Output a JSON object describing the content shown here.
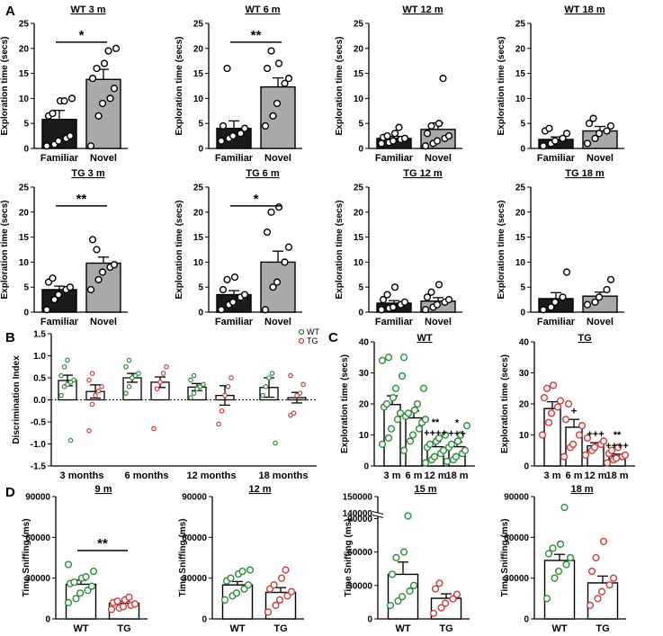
{
  "panel_letters": [
    "A",
    "B",
    "C",
    "D"
  ],
  "colors": {
    "familiar": "#1a1a1a",
    "novel": "#a9a9a9",
    "wt": "#2e8b3d",
    "tg": "#d03a3a"
  },
  "chart_data": [
    {
      "id": "a1",
      "panel": "A",
      "type": "bar",
      "title": "WT 3 m",
      "ylabel": "Exploration time (secs)",
      "ylim": [
        0,
        25
      ],
      "yticks": [
        0,
        5,
        10,
        15,
        20,
        25
      ],
      "categories": [
        "Familiar",
        "Novel"
      ],
      "values": [
        5.8,
        13.8
      ],
      "sem": [
        1.8,
        2.0
      ],
      "points": [
        [
          0.5,
          0.8,
          1.5,
          2,
          2.5,
          6.5,
          7,
          9.5,
          9.5,
          10
        ],
        [
          0.5,
          6.5,
          9,
          10,
          12,
          14,
          16,
          17,
          19.5,
          20
        ]
      ],
      "sig": "*"
    },
    {
      "id": "a2",
      "panel": "A",
      "type": "bar",
      "title": "WT 6 m",
      "ylabel": "Exploration time (secs)",
      "ylim": [
        0,
        25
      ],
      "yticks": [
        0,
        5,
        10,
        15,
        20,
        25
      ],
      "categories": [
        "Familiar",
        "Novel"
      ],
      "values": [
        4.0,
        12.3
      ],
      "sem": [
        1.5,
        1.8
      ],
      "points": [
        [
          1.5,
          2,
          2.5,
          3,
          4,
          4.5,
          16
        ],
        [
          4.5,
          6.5,
          9,
          13,
          14,
          16,
          19.5,
          17
        ]
      ],
      "sig": "**"
    },
    {
      "id": "a3",
      "panel": "A",
      "type": "bar",
      "title": "WT 12 m",
      "ylabel": "Exploration time (secs)",
      "ylim": [
        0,
        25
      ],
      "yticks": [
        0,
        5,
        10,
        15,
        20,
        25
      ],
      "categories": [
        "Familiar",
        "Novel"
      ],
      "values": [
        2.0,
        3.8
      ],
      "sem": [
        0.4,
        1.3
      ],
      "points": [
        [
          1,
          1.2,
          1.5,
          1.8,
          2,
          2.2,
          2.5,
          3,
          4.2
        ],
        [
          0.5,
          1,
          1.5,
          2,
          2.5,
          3,
          4.5,
          5,
          14
        ]
      ],
      "sig": ""
    },
    {
      "id": "a4",
      "panel": "A",
      "type": "bar",
      "title": "WT 18 m",
      "ylabel": "Exploration time (secs)",
      "ylim": [
        0,
        25
      ],
      "yticks": [
        0,
        5,
        10,
        15,
        20,
        25
      ],
      "categories": [
        "Familiar",
        "Novel"
      ],
      "values": [
        1.8,
        3.5
      ],
      "sem": [
        0.5,
        0.9
      ],
      "points": [
        [
          0.5,
          1,
          1.5,
          2,
          3,
          3.5,
          4
        ],
        [
          1,
          2,
          3,
          3.5,
          4.5,
          5,
          6
        ]
      ],
      "sig": ""
    },
    {
      "id": "a5",
      "panel": "A",
      "type": "bar",
      "title": "TG 3 m",
      "ylabel": "Exploration time (secs)",
      "ylim": [
        0,
        25
      ],
      "yticks": [
        0,
        5,
        10,
        15,
        20,
        25
      ],
      "categories": [
        "Familiar",
        "Novel"
      ],
      "values": [
        4.5,
        9.8
      ],
      "sem": [
        0.7,
        1.2
      ],
      "points": [
        [
          0.5,
          2.5,
          3.5,
          4.5,
          5,
          6,
          6.8
        ],
        [
          4.5,
          6.5,
          8,
          9,
          9.5,
          14.5,
          12.5
        ]
      ],
      "sig": "**"
    },
    {
      "id": "a6",
      "panel": "A",
      "type": "bar",
      "title": "TG 6 m",
      "ylabel": "Exploration time (secs)",
      "ylim": [
        0,
        25
      ],
      "yticks": [
        0,
        5,
        10,
        15,
        20,
        25
      ],
      "categories": [
        "Familiar",
        "Novel"
      ],
      "values": [
        3.5,
        10.0
      ],
      "sem": [
        0.8,
        2.2
      ],
      "points": [
        [
          0.5,
          1.5,
          2,
          3,
          3.5,
          4.5,
          6.5,
          7
        ],
        [
          0.5,
          5,
          6,
          10,
          13,
          16,
          20,
          21
        ]
      ],
      "sig": "*"
    },
    {
      "id": "a7",
      "panel": "A",
      "type": "bar",
      "title": "TG 12 m",
      "ylabel": "Exploration time (secs)",
      "ylim": [
        0,
        25
      ],
      "yticks": [
        0,
        5,
        10,
        15,
        20,
        25
      ],
      "categories": [
        "Familiar",
        "Novel"
      ],
      "values": [
        1.8,
        2.2
      ],
      "sem": [
        0.5,
        0.7
      ],
      "points": [
        [
          0.5,
          0.8,
          1,
          1.5,
          2,
          2.5,
          3.5,
          5
        ],
        [
          0.5,
          1,
          1.5,
          2,
          2.5,
          3,
          4,
          5.5
        ]
      ],
      "sig": ""
    },
    {
      "id": "a8",
      "panel": "A",
      "type": "bar",
      "title": "TG 18 m",
      "ylabel": "Exploration time (secs)",
      "ylim": [
        0,
        25
      ],
      "yticks": [
        0,
        5,
        10,
        15,
        20,
        25
      ],
      "categories": [
        "Familiar",
        "Novel"
      ],
      "values": [
        2.7,
        3.2
      ],
      "sem": [
        1.2,
        0.8
      ],
      "points": [
        [
          0.5,
          1,
          2,
          3,
          8
        ],
        [
          1.5,
          2,
          3,
          4.5,
          6.5
        ]
      ],
      "sig": ""
    },
    {
      "id": "b",
      "panel": "B",
      "type": "bar",
      "title": "",
      "ylabel": "Discrimination Index",
      "ylim": [
        -1.5,
        1.5
      ],
      "yticks": [
        -1.5,
        -1.0,
        -0.5,
        0.0,
        0.5,
        1.0,
        1.5
      ],
      "categories": [
        "3 months",
        "6 months",
        "12 months",
        "18 months"
      ],
      "series": [
        {
          "name": "WT",
          "values": [
            0.44,
            0.5,
            0.29,
            0.28
          ],
          "sem": [
            0.12,
            0.1,
            0.08,
            0.22
          ],
          "points": [
            [
              0.1,
              0.3,
              0.35,
              0.4,
              0.45,
              0.55,
              0.75,
              0.9,
              -0.92
            ],
            [
              0.15,
              0.3,
              0.5,
              0.55,
              0.6,
              0.75,
              0.9
            ],
            [
              0.05,
              0.15,
              0.25,
              0.3,
              0.35,
              0.45,
              0.55
            ],
            [
              0.1,
              0.3,
              0.5,
              0.6,
              -0.98
            ]
          ]
        },
        {
          "name": "TG",
          "values": [
            0.19,
            0.4,
            0.1,
            0.05
          ],
          "sem": [
            0.15,
            0.12,
            0.22,
            0.12
          ],
          "points": [
            [
              -0.7,
              -0.1,
              0.1,
              0.2,
              0.3,
              0.45,
              0.6
            ],
            [
              -0.65,
              0.25,
              0.4,
              0.6,
              0.75
            ],
            [
              -0.55,
              -0.25,
              0.1,
              0.3,
              0.5
            ],
            [
              -0.35,
              -0.3,
              0.1,
              0.15,
              0.35,
              0.55
            ]
          ]
        }
      ],
      "legend": [
        "WT",
        "TG"
      ]
    },
    {
      "id": "c1",
      "panel": "C",
      "type": "bar",
      "title": "WT",
      "ylabel": "Exploration time (secs)",
      "ylim": [
        0,
        40
      ],
      "yticks": [
        0,
        10,
        20,
        30,
        40
      ],
      "categories": [
        "3 m",
        "6 m",
        "12 m",
        "18 m"
      ],
      "values": [
        19.8,
        15.5,
        6.2,
        6.2
      ],
      "sem": [
        2.8,
        2.3,
        1.6,
        1.5
      ],
      "points": [
        [
          7,
          9,
          12,
          15,
          17,
          19,
          20,
          22,
          25,
          29,
          34,
          35
        ],
        [
          5,
          8,
          10,
          12,
          14,
          16,
          17,
          18,
          20,
          25,
          35
        ],
        [
          1,
          2,
          3,
          4,
          5,
          6,
          7,
          8,
          9,
          10,
          15
        ],
        [
          1.5,
          2,
          3,
          4,
          5,
          6,
          7,
          8,
          10,
          13
        ]
      ],
      "annotations": [
        "",
        "",
        "**\n++++",
        "*\n+++"
      ],
      "color": "#2e8b3d"
    },
    {
      "id": "c2",
      "panel": "C",
      "type": "bar",
      "title": "TG",
      "ylabel": "Exploration time (secs)",
      "ylim": [
        0,
        40
      ],
      "yticks": [
        0,
        10,
        20,
        30,
        40
      ],
      "categories": [
        "3 m",
        "6 m",
        "12 m",
        "18 m"
      ],
      "values": [
        18.5,
        12.5,
        6.5,
        3.2
      ],
      "sem": [
        2.2,
        2.5,
        1.0,
        0.6
      ],
      "points": [
        [
          10,
          14,
          17,
          19,
          21,
          22,
          25,
          26
        ],
        [
          3,
          6,
          7,
          10,
          13,
          15,
          20
        ],
        [
          3.5,
          5,
          6,
          7,
          8,
          9
        ],
        [
          1,
          2,
          2.5,
          3,
          3.5,
          4,
          5,
          6
        ]
      ],
      "annotations": [
        "",
        "+",
        "+++",
        "**\n++++"
      ],
      "color": "#d03a3a"
    },
    {
      "id": "d1",
      "panel": "D",
      "type": "bar",
      "title": "9 m",
      "ylabel": "Time Sniffing (ms)",
      "ylim": [
        0,
        90000
      ],
      "yticks": [
        0,
        30000,
        60000,
        90000
      ],
      "categories": [
        "WT",
        "TG"
      ],
      "values": [
        25500,
        11500
      ],
      "sem": [
        3000,
        1500
      ],
      "points": [
        [
          12000,
          15000,
          19000,
          21000,
          24000,
          26000,
          27000,
          30000,
          31000,
          35000,
          40000
        ],
        [
          7000,
          8000,
          9000,
          10000,
          11000,
          12000,
          13000,
          14000,
          16000
        ]
      ],
      "sig": "**"
    },
    {
      "id": "d2",
      "panel": "D",
      "type": "bar",
      "title": "12 m",
      "ylabel": "Time Sniffing (ms)",
      "ylim": [
        0,
        90000
      ],
      "yticks": [
        0,
        30000,
        60000,
        90000
      ],
      "categories": [
        "WT",
        "TG"
      ],
      "values": [
        25000,
        19500
      ],
      "sem": [
        2500,
        3500
      ],
      "points": [
        [
          14000,
          17000,
          19000,
          22000,
          25000,
          28000,
          30000,
          33000,
          35000,
          36000
        ],
        [
          5000,
          10000,
          14000,
          17000,
          20000,
          22000,
          25000,
          30000,
          36000
        ]
      ],
      "sig": ""
    },
    {
      "id": "d3",
      "panel": "D",
      "type": "bar",
      "title": "15 m",
      "ylabel": "Time Sniffing (ms)",
      "ylim": [
        0,
        150000
      ],
      "yticks": [
        0,
        30000,
        60000,
        90000,
        140000,
        150000
      ],
      "axis_break": [
        90000,
        140000
      ],
      "categories": [
        "WT",
        "TG"
      ],
      "values": [
        40000,
        18500
      ],
      "sem": [
        11000,
        4000
      ],
      "points": [
        [
          12000,
          16000,
          20000,
          25000,
          30000,
          40000,
          55000,
          60000,
          125000
        ],
        [
          5000,
          10000,
          14000,
          18000,
          22000,
          27000,
          32000
        ]
      ],
      "sig": ""
    },
    {
      "id": "d4",
      "panel": "D",
      "type": "bar",
      "title": "18 m",
      "ylabel": "Time Sniffing (ms)",
      "ylim": [
        0,
        90000
      ],
      "yticks": [
        0,
        30000,
        60000,
        90000
      ],
      "categories": [
        "WT",
        "TG"
      ],
      "values": [
        43000,
        26500
      ],
      "sem": [
        4500,
        5000
      ],
      "points": [
        [
          15000,
          30000,
          35000,
          40000,
          45000,
          48000,
          52000,
          55000,
          82000
        ],
        [
          10000,
          15000,
          20000,
          25000,
          30000,
          35000,
          45000,
          57000
        ]
      ],
      "sig": ""
    }
  ]
}
